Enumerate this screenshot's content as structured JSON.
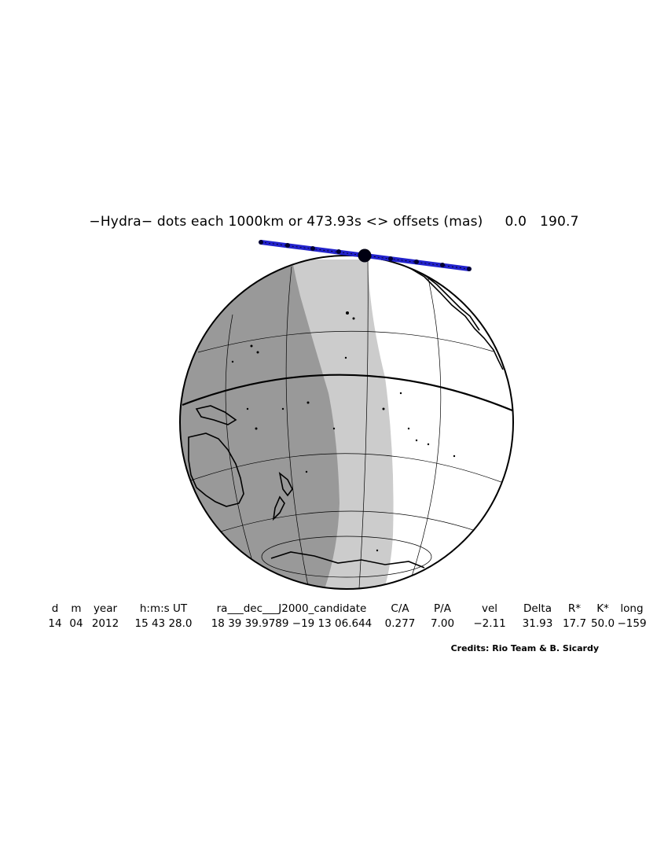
{
  "title": {
    "body": "Hydra",
    "dots_label": "dots each 1000km or 473.93s <> offsets (mas)",
    "offset_ra": "0.0",
    "offset_dec": "190.7"
  },
  "table": {
    "headers": [
      "d",
      "m",
      "year",
      "h:m:s UT",
      "ra___dec___J2000_candidate",
      "C/A",
      "P/A",
      "vel",
      "Delta",
      "R*",
      "K*",
      "long"
    ],
    "values": [
      "14",
      "04",
      "2012",
      "15 43 28.0",
      "18 39 39.9789 −19 13 06.644",
      "0.277",
      "7.00",
      "−2.11",
      "31.93",
      "17.7",
      "50.0",
      "−159"
    ]
  },
  "credits": "Credits: Rio Team & B. Sicardy",
  "colors": {
    "track": "#2222cc",
    "night": "#999999",
    "twilight": "#cccccc",
    "day": "#ffffff",
    "coast": "#000000"
  },
  "map": {
    "projection": "orthographic",
    "ground_track_dots": 7,
    "closest_approach_marker": "large black disc"
  }
}
